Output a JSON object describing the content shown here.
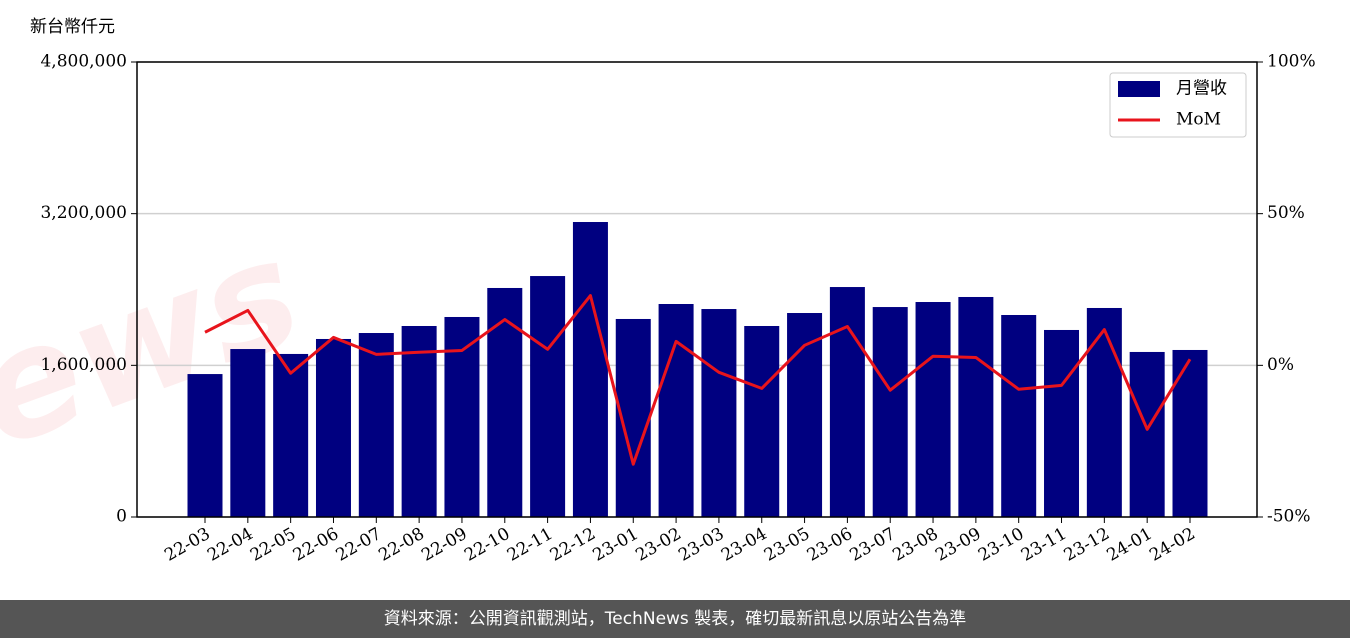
{
  "chart_data": {
    "type": "bar_line",
    "y_label": "新台幣仟元",
    "watermark": "TechNews",
    "footer": "資料來源：公開資訊觀測站，TechNews 製表，確切最新訊息以原站公告為準",
    "categories": [
      "22-03",
      "22-04",
      "22-05",
      "22-06",
      "22-07",
      "22-08",
      "22-09",
      "22-10",
      "22-11",
      "22-12",
      "23-01",
      "23-02",
      "23-03",
      "23-04",
      "23-05",
      "23-06",
      "23-07",
      "23-08",
      "23-09",
      "23-10",
      "23-11",
      "23-12",
      "24-01",
      "24-02"
    ],
    "series": [
      {
        "name": "月營收",
        "type": "bar",
        "color": "#000080",
        "axis": "y",
        "values": [
          1508000,
          1772000,
          1720000,
          1878000,
          1941000,
          2015000,
          2110000,
          2416000,
          2542000,
          3112000,
          2089000,
          2247000,
          2194000,
          2015000,
          2152000,
          2426000,
          2215000,
          2268000,
          2321000,
          2131000,
          1973000,
          2205000,
          1741000,
          1762000
        ]
      },
      {
        "name": "MoM",
        "type": "line",
        "color": "#e8141c",
        "axis": "y2",
        "values": [
          10.9,
          18.1,
          -2.6,
          9.2,
          3.6,
          4.3,
          4.9,
          15.1,
          5.3,
          23.0,
          -32.6,
          7.9,
          -2.3,
          -7.6,
          6.6,
          12.8,
          -8.2,
          3.0,
          2.6,
          -7.9,
          -6.6,
          11.8,
          -21.1,
          2.0
        ]
      }
    ],
    "ylim": [
      0,
      4800000
    ],
    "yticks": [
      0,
      {
        "value": 1600000,
        "label": "1,600,000"
      },
      {
        "value": 3200000,
        "label": "3,200,000"
      },
      {
        "value": 4800000,
        "label": "4,800,000"
      }
    ],
    "y2lim": [
      -50,
      100
    ],
    "y2ticks": [
      {
        "value": -50,
        "label": "-50%"
      },
      {
        "value": 0,
        "label": "0%"
      },
      {
        "value": 50,
        "label": "50%"
      },
      {
        "value": 100,
        "label": "100%"
      }
    ],
    "grid": true,
    "legend": "upper right"
  }
}
